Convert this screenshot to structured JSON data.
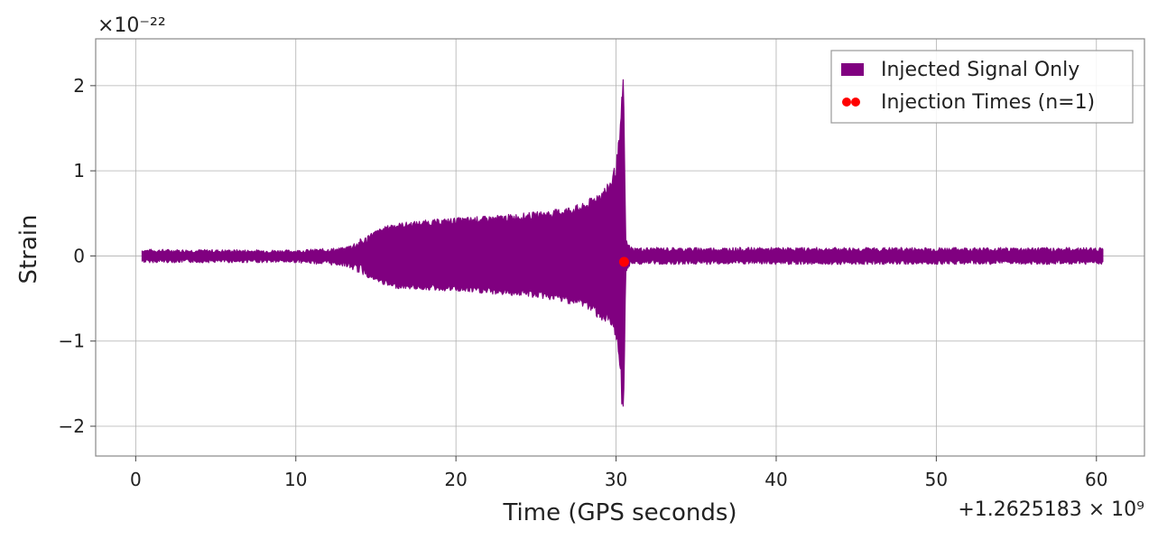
{
  "chart_data": {
    "type": "line",
    "title": "",
    "xlabel": "Time (GPS seconds)",
    "ylabel": "Strain",
    "x_offset_label": "+1.2625183 × 10⁹",
    "y_scale_label": "×10⁻²²",
    "xlim": [
      -2.5,
      63
    ],
    "ylim": [
      -2.35,
      2.55
    ],
    "xticks": [
      0,
      10,
      20,
      30,
      40,
      50,
      60
    ],
    "yticks": [
      -2,
      -1,
      0,
      1,
      2
    ],
    "xtick_labels": [
      "0",
      "10",
      "20",
      "30",
      "40",
      "50",
      "60"
    ],
    "ytick_labels": [
      "−2",
      "−1",
      "0",
      "1",
      "2"
    ],
    "grid": true,
    "legend_position": "top-right",
    "series": [
      {
        "name": "Injected Signal Only",
        "color": "#800080",
        "kind": "waveform",
        "x_range": [
          0.4,
          60.4
        ],
        "envelope": [
          {
            "x": 0.4,
            "upper": 0.08,
            "lower": -0.08
          },
          {
            "x": 10,
            "upper": 0.07,
            "lower": -0.08
          },
          {
            "x": 13,
            "upper": 0.1,
            "lower": -0.12
          },
          {
            "x": 15,
            "upper": 0.3,
            "lower": -0.3
          },
          {
            "x": 16,
            "upper": 0.38,
            "lower": -0.38
          },
          {
            "x": 18,
            "upper": 0.42,
            "lower": -0.4
          },
          {
            "x": 20,
            "upper": 0.45,
            "lower": -0.42
          },
          {
            "x": 22,
            "upper": 0.47,
            "lower": -0.45
          },
          {
            "x": 24,
            "upper": 0.5,
            "lower": -0.47
          },
          {
            "x": 26,
            "upper": 0.54,
            "lower": -0.52
          },
          {
            "x": 28,
            "upper": 0.62,
            "lower": -0.6
          },
          {
            "x": 29.5,
            "upper": 0.85,
            "lower": -0.82
          },
          {
            "x": 30.0,
            "upper": 1.1,
            "lower": -1.0
          },
          {
            "x": 30.3,
            "upper": 1.6,
            "lower": -1.5
          },
          {
            "x": 30.45,
            "upper": 2.35,
            "lower": -2.15
          },
          {
            "x": 30.6,
            "upper": 0.2,
            "lower": -0.2
          },
          {
            "x": 31,
            "upper": 0.1,
            "lower": -0.1
          },
          {
            "x": 40,
            "upper": 0.1,
            "lower": -0.1
          },
          {
            "x": 50,
            "upper": 0.1,
            "lower": -0.1
          },
          {
            "x": 60.4,
            "upper": 0.1,
            "lower": -0.1
          }
        ]
      },
      {
        "name": "Injection Times (n=1)",
        "color": "#ff0000",
        "kind": "scatter",
        "points": [
          {
            "x": 30.5,
            "y": -0.07
          }
        ]
      }
    ]
  }
}
